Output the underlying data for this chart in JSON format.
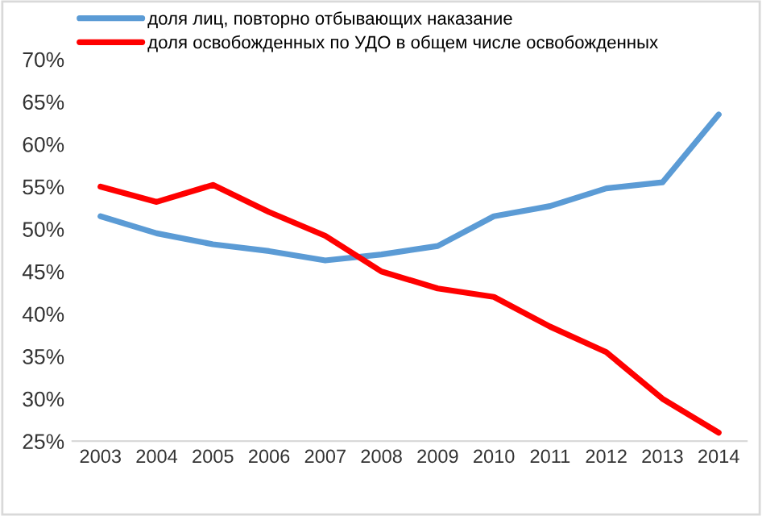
{
  "chart_data": {
    "type": "line",
    "categories": [
      "2003",
      "2004",
      "2005",
      "2006",
      "2007",
      "2008",
      "2009",
      "2010",
      "2011",
      "2012",
      "2013",
      "2014"
    ],
    "series": [
      {
        "name": "доля лиц, повторно отбывающих наказание",
        "color": "#5b9bd5",
        "values": [
          51.5,
          49.5,
          48.2,
          47.4,
          46.3,
          47.0,
          48.0,
          51.5,
          52.7,
          54.8,
          55.5,
          63.5
        ]
      },
      {
        "name": "доля освобожденных по УДО в общем числе освобожденных",
        "color": "#ff0000",
        "values": [
          55.0,
          53.2,
          55.2,
          52.0,
          49.2,
          45.0,
          43.0,
          42.0,
          38.5,
          35.5,
          30.0,
          26.0
        ]
      }
    ],
    "ylim": [
      25,
      70
    ],
    "yticks": [
      {
        "value": 25,
        "label": "25%"
      },
      {
        "value": 30,
        "label": "30%"
      },
      {
        "value": 35,
        "label": "35%"
      },
      {
        "value": 40,
        "label": "40%"
      },
      {
        "value": 45,
        "label": "45%"
      },
      {
        "value": 50,
        "label": "50%"
      },
      {
        "value": 55,
        "label": "55%"
      },
      {
        "value": 60,
        "label": "60%"
      },
      {
        "value": 65,
        "label": "65%"
      },
      {
        "value": 70,
        "label": "70%"
      }
    ],
    "grid": false,
    "legend": "top",
    "marker": "none",
    "line_style": "solid"
  }
}
